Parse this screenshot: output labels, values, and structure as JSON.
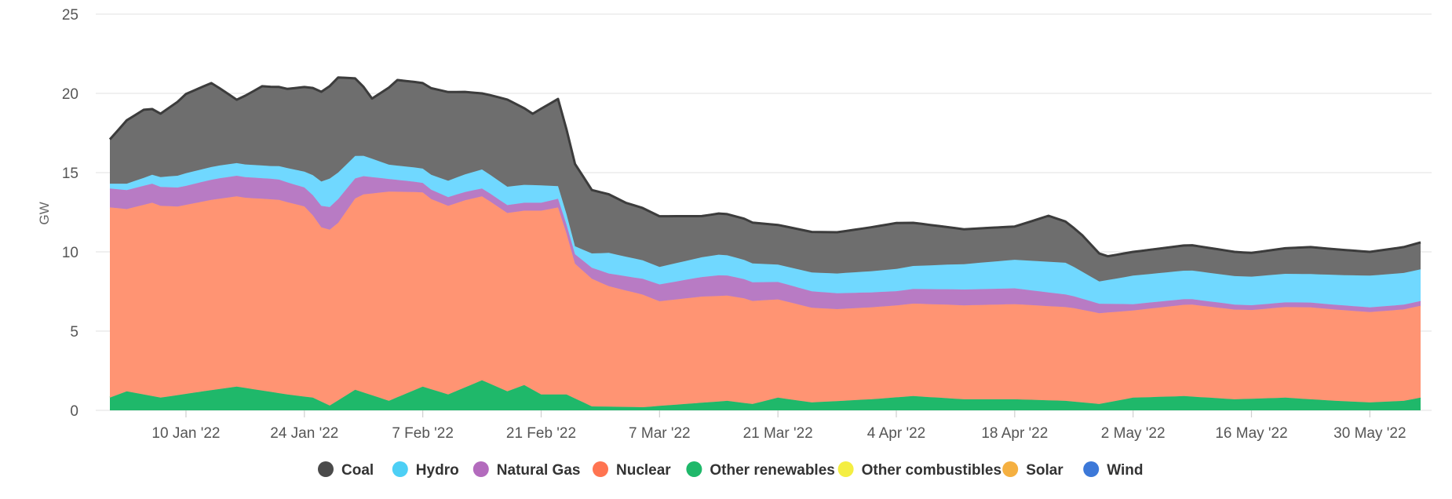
{
  "chart_data": {
    "type": "area",
    "stacked": true,
    "ylabel": "GW",
    "ylim": [
      0,
      25
    ],
    "yticks": [
      "0",
      "5",
      "10",
      "15",
      "20",
      "25"
    ],
    "xticks": [
      {
        "date": "2022-01-10",
        "label": "10 Jan '22"
      },
      {
        "date": "2022-01-24",
        "label": "24 Jan '22"
      },
      {
        "date": "2022-02-07",
        "label": "7 Feb '22"
      },
      {
        "date": "2022-02-21",
        "label": "21 Feb '22"
      },
      {
        "date": "2022-03-07",
        "label": "7 Mar '22"
      },
      {
        "date": "2022-03-21",
        "label": "21 Mar '22"
      },
      {
        "date": "2022-04-04",
        "label": "4 Apr '22"
      },
      {
        "date": "2022-04-18",
        "label": "18 Apr '22"
      },
      {
        "date": "2022-05-02",
        "label": "2 May '22"
      },
      {
        "date": "2022-05-16",
        "label": "16 May '22"
      },
      {
        "date": "2022-05-30",
        "label": "30 May '22"
      }
    ],
    "x_start": "2022-01-01",
    "x_end": "2022-06-05",
    "grid": true,
    "legend_position": "bottom",
    "series": [
      {
        "name": "Wind",
        "color": "#3c78d8",
        "anchors": [
          [
            "2022-01-01",
            0
          ],
          [
            "2022-06-05",
            0
          ]
        ]
      },
      {
        "name": "Solar",
        "color": "#f5b041",
        "anchors": [
          [
            "2022-01-01",
            0
          ],
          [
            "2022-06-05",
            0
          ]
        ]
      },
      {
        "name": "Other combustibles",
        "color": "#f4ee42",
        "anchors": [
          [
            "2022-01-01",
            0
          ],
          [
            "2022-06-05",
            0
          ]
        ]
      },
      {
        "name": "Other renewables",
        "color": "#1fb86a",
        "anchors": [
          [
            "2022-01-01",
            0.8
          ],
          [
            "2022-01-03",
            1.2
          ],
          [
            "2022-01-07",
            0.8
          ],
          [
            "2022-01-12",
            1.2
          ],
          [
            "2022-01-16",
            1.5
          ],
          [
            "2022-01-22",
            1.0
          ],
          [
            "2022-01-25",
            0.8
          ],
          [
            "2022-01-27",
            0.3
          ],
          [
            "2022-01-30",
            1.3
          ],
          [
            "2022-02-03",
            0.6
          ],
          [
            "2022-02-07",
            1.5
          ],
          [
            "2022-02-10",
            1.0
          ],
          [
            "2022-02-14",
            1.9
          ],
          [
            "2022-02-17",
            1.2
          ],
          [
            "2022-02-19",
            1.6
          ],
          [
            "2022-02-21",
            1.0
          ],
          [
            "2022-02-24",
            1.0
          ],
          [
            "2022-02-27",
            0.25
          ],
          [
            "2022-03-05",
            0.2
          ],
          [
            "2022-03-10",
            0.4
          ],
          [
            "2022-03-15",
            0.6
          ],
          [
            "2022-03-18",
            0.4
          ],
          [
            "2022-03-21",
            0.8
          ],
          [
            "2022-03-25",
            0.5
          ],
          [
            "2022-04-01",
            0.7
          ],
          [
            "2022-04-06",
            0.9
          ],
          [
            "2022-04-12",
            0.7
          ],
          [
            "2022-04-18",
            0.7
          ],
          [
            "2022-04-24",
            0.6
          ],
          [
            "2022-04-28",
            0.4
          ],
          [
            "2022-05-02",
            0.8
          ],
          [
            "2022-05-08",
            0.9
          ],
          [
            "2022-05-14",
            0.7
          ],
          [
            "2022-05-20",
            0.8
          ],
          [
            "2022-05-26",
            0.6
          ],
          [
            "2022-05-30",
            0.5
          ],
          [
            "2022-06-03",
            0.6
          ],
          [
            "2022-06-05",
            0.8
          ]
        ]
      },
      {
        "name": "Nuclear",
        "color": "#ff9473",
        "anchors": [
          [
            "2022-01-01",
            12.0
          ],
          [
            "2022-01-03",
            11.5
          ],
          [
            "2022-01-06",
            12.2
          ],
          [
            "2022-01-09",
            11.9
          ],
          [
            "2022-01-13",
            12.0
          ],
          [
            "2022-01-17",
            12.0
          ],
          [
            "2022-01-21",
            12.2
          ],
          [
            "2022-01-24",
            12.0
          ],
          [
            "2022-01-26",
            11.0
          ],
          [
            "2022-01-28",
            11.2
          ],
          [
            "2022-01-31",
            12.5
          ],
          [
            "2022-02-03",
            13.2
          ],
          [
            "2022-02-06",
            12.5
          ],
          [
            "2022-02-08",
            12.0
          ],
          [
            "2022-02-12",
            11.8
          ],
          [
            "2022-02-15",
            11.5
          ],
          [
            "2022-02-19",
            11.0
          ],
          [
            "2022-02-21",
            11.6
          ],
          [
            "2022-02-23",
            11.8
          ],
          [
            "2022-02-25",
            8.5
          ],
          [
            "2022-03-01",
            7.6
          ],
          [
            "2022-03-05",
            7.1
          ],
          [
            "2022-03-07",
            6.6
          ],
          [
            "2022-03-12",
            6.7
          ],
          [
            "2022-03-17",
            6.6
          ],
          [
            "2022-03-21",
            6.2
          ],
          [
            "2022-03-28",
            5.8
          ],
          [
            "2022-04-04",
            5.8
          ],
          [
            "2022-04-10",
            5.9
          ],
          [
            "2022-04-18",
            6.0
          ],
          [
            "2022-04-25",
            5.9
          ],
          [
            "2022-05-02",
            5.5
          ],
          [
            "2022-05-09",
            5.8
          ],
          [
            "2022-05-16",
            5.6
          ],
          [
            "2022-05-23",
            5.8
          ],
          [
            "2022-05-30",
            5.7
          ],
          [
            "2022-06-05",
            5.8
          ]
        ]
      },
      {
        "name": "Natural Gas",
        "color": "#b87bc4",
        "anchors": [
          [
            "2022-01-01",
            1.2
          ],
          [
            "2022-01-05",
            1.2
          ],
          [
            "2022-01-10",
            1.2
          ],
          [
            "2022-01-14",
            1.3
          ],
          [
            "2022-01-20",
            1.3
          ],
          [
            "2022-01-24",
            1.2
          ],
          [
            "2022-01-28",
            1.5
          ],
          [
            "2022-02-03",
            0.8
          ],
          [
            "2022-02-07",
            0.6
          ],
          [
            "2022-02-14",
            0.5
          ],
          [
            "2022-02-21",
            0.5
          ],
          [
            "2022-02-25",
            0.6
          ],
          [
            "2022-03-05",
            1.0
          ],
          [
            "2022-03-14",
            1.3
          ],
          [
            "2022-03-21",
            1.1
          ],
          [
            "2022-04-04",
            0.9
          ],
          [
            "2022-04-12",
            1.0
          ],
          [
            "2022-04-18",
            1.0
          ],
          [
            "2022-04-24",
            0.8
          ],
          [
            "2022-05-02",
            0.4
          ],
          [
            "2022-05-16",
            0.3
          ],
          [
            "2022-05-30",
            0.3
          ],
          [
            "2022-06-05",
            0.3
          ]
        ]
      },
      {
        "name": "Hydro",
        "color": "#70d8ff",
        "anchors": [
          [
            "2022-01-01",
            0.3
          ],
          [
            "2022-01-05",
            0.5
          ],
          [
            "2022-01-10",
            0.8
          ],
          [
            "2022-01-20",
            0.8
          ],
          [
            "2022-01-24",
            1.0
          ],
          [
            "2022-01-27",
            1.8
          ],
          [
            "2022-02-03",
            0.9
          ],
          [
            "2022-02-07",
            0.9
          ],
          [
            "2022-02-14",
            1.2
          ],
          [
            "2022-02-21",
            1.1
          ],
          [
            "2022-02-25",
            0.5
          ],
          [
            "2022-03-01",
            1.3
          ],
          [
            "2022-03-07",
            1.1
          ],
          [
            "2022-03-14",
            1.3
          ],
          [
            "2022-03-21",
            1.1
          ],
          [
            "2022-04-04",
            1.4
          ],
          [
            "2022-04-12",
            1.6
          ],
          [
            "2022-04-18",
            1.8
          ],
          [
            "2022-04-24",
            2.0
          ],
          [
            "2022-04-28",
            1.4
          ],
          [
            "2022-05-02",
            1.8
          ],
          [
            "2022-05-09",
            1.8
          ],
          [
            "2022-05-16",
            1.8
          ],
          [
            "2022-05-23",
            1.8
          ],
          [
            "2022-05-30",
            2.0
          ],
          [
            "2022-06-05",
            2.0
          ]
        ]
      },
      {
        "name": "Coal",
        "color": "#6e6e6e",
        "anchors": [
          [
            "2022-01-01",
            2.8
          ],
          [
            "2022-01-03",
            4.0
          ],
          [
            "2022-01-05",
            4.3
          ],
          [
            "2022-01-07",
            4.0
          ],
          [
            "2022-01-10",
            5.0
          ],
          [
            "2022-01-13",
            5.3
          ],
          [
            "2022-01-16",
            4.0
          ],
          [
            "2022-01-19",
            5.0
          ],
          [
            "2022-01-22",
            5.0
          ],
          [
            "2022-01-25",
            5.5
          ],
          [
            "2022-01-28",
            6.0
          ],
          [
            "2022-02-01",
            3.8
          ],
          [
            "2022-02-04",
            5.4
          ],
          [
            "2022-02-07",
            5.4
          ],
          [
            "2022-02-10",
            5.6
          ],
          [
            "2022-02-14",
            4.8
          ],
          [
            "2022-02-17",
            5.5
          ],
          [
            "2022-02-20",
            4.5
          ],
          [
            "2022-02-23",
            5.5
          ],
          [
            "2022-02-25",
            5.2
          ],
          [
            "2022-02-27",
            4.0
          ],
          [
            "2022-03-03",
            3.4
          ],
          [
            "2022-03-07",
            3.2
          ],
          [
            "2022-03-12",
            2.6
          ],
          [
            "2022-03-17",
            2.6
          ],
          [
            "2022-03-21",
            2.5
          ],
          [
            "2022-03-28",
            2.6
          ],
          [
            "2022-04-04",
            2.9
          ],
          [
            "2022-04-12",
            2.2
          ],
          [
            "2022-04-18",
            2.1
          ],
          [
            "2022-04-22",
            2.9
          ],
          [
            "2022-04-26",
            2.3
          ],
          [
            "2022-04-29",
            1.5
          ],
          [
            "2022-05-02",
            1.5
          ],
          [
            "2022-05-09",
            1.6
          ],
          [
            "2022-05-16",
            1.5
          ],
          [
            "2022-05-23",
            1.7
          ],
          [
            "2022-05-30",
            1.5
          ],
          [
            "2022-06-05",
            1.7
          ]
        ]
      }
    ],
    "legend": [
      {
        "name": "Coal",
        "color": "#4a4a4a"
      },
      {
        "name": "Hydro",
        "color": "#4dcff5"
      },
      {
        "name": "Natural Gas",
        "color": "#b36bbd"
      },
      {
        "name": "Nuclear",
        "color": "#ff7451"
      },
      {
        "name": "Other renewables",
        "color": "#1fb86a"
      },
      {
        "name": "Other combustibles",
        "color": "#f4ee42"
      },
      {
        "name": "Solar",
        "color": "#f5b041"
      },
      {
        "name": "Wind",
        "color": "#3c78d8"
      }
    ]
  }
}
